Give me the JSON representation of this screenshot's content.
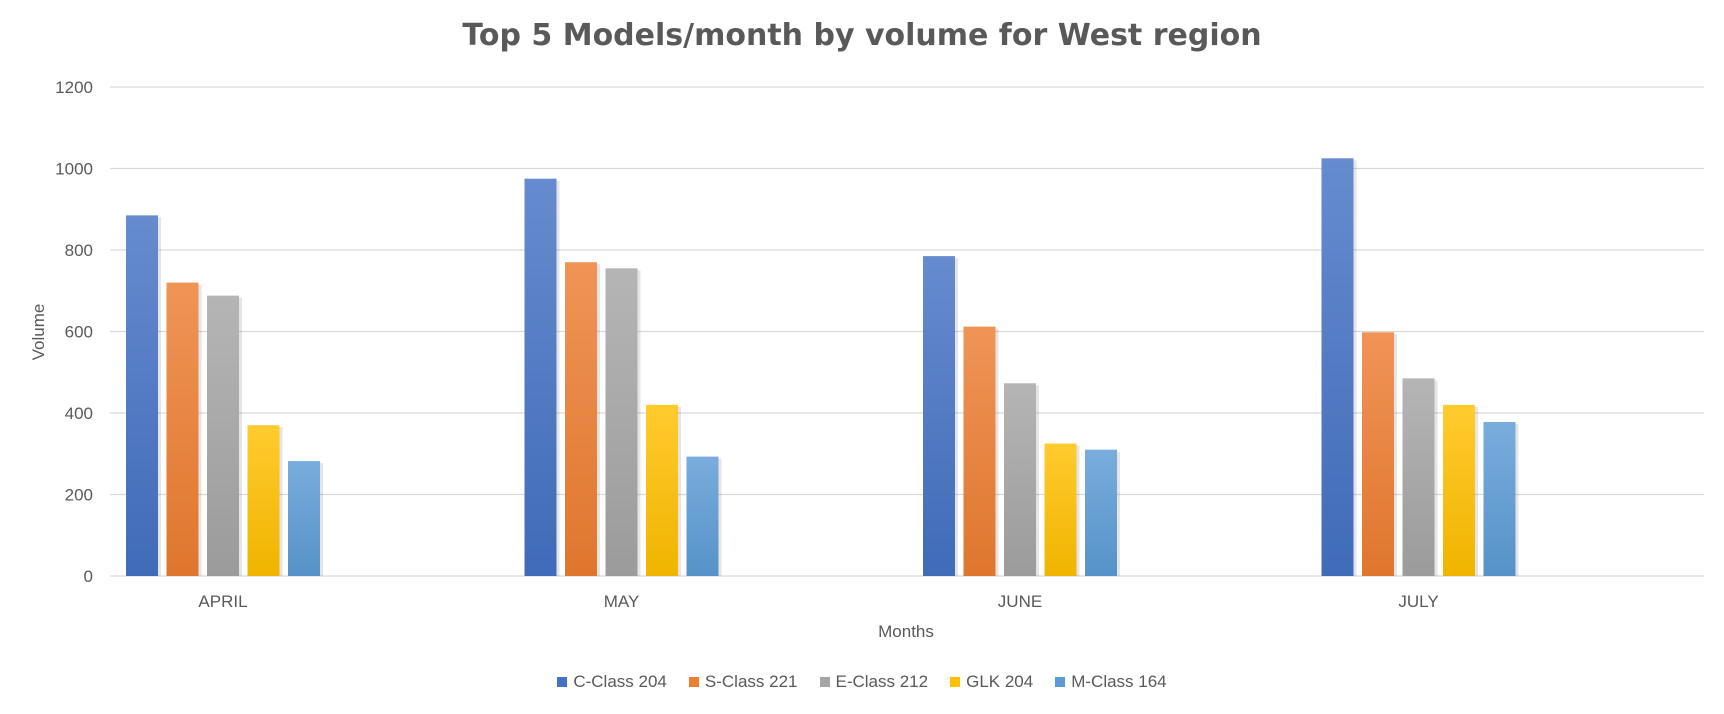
{
  "chart_data": {
    "type": "bar",
    "title": "Top 5 Models/month by volume for West region",
    "xlabel": "Months",
    "ylabel": "Volume",
    "categories": [
      "APRIL",
      "MAY",
      "JUNE",
      "JULY"
    ],
    "ylim": [
      0,
      1200
    ],
    "yticks": [
      0,
      200,
      400,
      600,
      800,
      1000,
      1200
    ],
    "grid": true,
    "legend_position": "bottom",
    "series": [
      {
        "name": "C-Class 204",
        "color": "#4472c4",
        "values": [
          885,
          975,
          785,
          1025
        ]
      },
      {
        "name": "S-Class 221",
        "color": "#ed7d31",
        "values": [
          720,
          770,
          612,
          598
        ]
      },
      {
        "name": "E-Class 212",
        "color": "#a5a5a5",
        "values": [
          688,
          755,
          473,
          485
        ]
      },
      {
        "name": "GLK 204",
        "color": "#ffc000",
        "values": [
          370,
          420,
          325,
          420
        ]
      },
      {
        "name": "M-Class 164",
        "color": "#5b9bd5",
        "values": [
          282,
          293,
          310,
          378
        ]
      }
    ]
  }
}
